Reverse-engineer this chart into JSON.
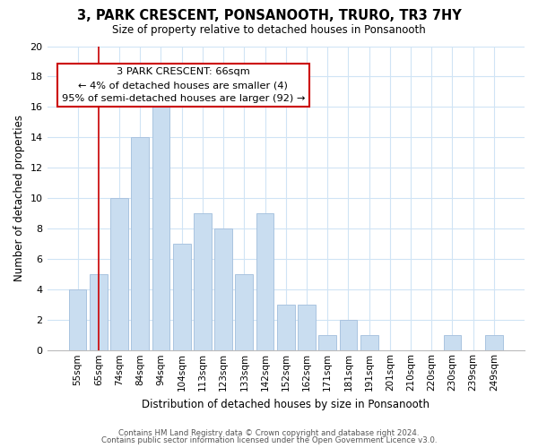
{
  "title": "3, PARK CRESCENT, PONSANOOTH, TRURO, TR3 7HY",
  "subtitle": "Size of property relative to detached houses in Ponsanooth",
  "xlabel": "Distribution of detached houses by size in Ponsanooth",
  "ylabel": "Number of detached properties",
  "bar_labels": [
    "55sqm",
    "65sqm",
    "74sqm",
    "84sqm",
    "94sqm",
    "104sqm",
    "113sqm",
    "123sqm",
    "133sqm",
    "142sqm",
    "152sqm",
    "162sqm",
    "171sqm",
    "181sqm",
    "191sqm",
    "201sqm",
    "210sqm",
    "220sqm",
    "230sqm",
    "239sqm",
    "249sqm"
  ],
  "bar_values": [
    4,
    5,
    10,
    14,
    16,
    7,
    9,
    8,
    5,
    9,
    3,
    3,
    1,
    2,
    1,
    0,
    0,
    0,
    1,
    0,
    1
  ],
  "bar_color": "#c9ddf0",
  "bar_edge_color": "#aac4e0",
  "vline_x": 1,
  "vline_color": "#cc0000",
  "ylim": [
    0,
    20
  ],
  "yticks": [
    0,
    2,
    4,
    6,
    8,
    10,
    12,
    14,
    16,
    18,
    20
  ],
  "annotation_title": "3 PARK CRESCENT: 66sqm",
  "annotation_line1": "← 4% of detached houses are smaller (4)",
  "annotation_line2": "95% of semi-detached houses are larger (92) →",
  "annotation_box_color": "#ffffff",
  "annotation_box_edgecolor": "#cc0000",
  "footer1": "Contains HM Land Registry data © Crown copyright and database right 2024.",
  "footer2": "Contains public sector information licensed under the Open Government Licence v3.0.",
  "background_color": "#ffffff",
  "grid_color": "#d0e4f5"
}
